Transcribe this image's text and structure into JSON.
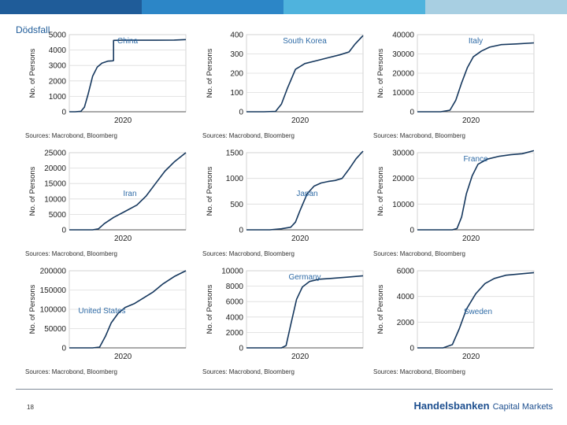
{
  "header": {
    "title": "Dödsfall",
    "bar_colors": [
      "#1f5c99",
      "#2c86c7",
      "#4fb3dd",
      "#a8cfe2"
    ]
  },
  "footer": {
    "page_number": "18",
    "brand_name": "Handelsbanken",
    "brand_suffix": "Capital Markets",
    "brand_color": "#1d4f8f"
  },
  "style": {
    "line_color": "#16385e",
    "grid_color": "#dcdcdc"
  },
  "chart_data": [
    {
      "type": "line",
      "title": "China",
      "ylabel": "No. of Persons",
      "xlabel": "2020",
      "source": "Sources: Macrobond, Bloomberg",
      "ylim": [
        0,
        5000
      ],
      "yticks": [
        "0",
        "1000",
        "2000",
        "3000",
        "4000",
        "5000"
      ],
      "grid": true,
      "legend_pos": "top-center",
      "series": [
        {
          "x": [
            0,
            0.05,
            0.1,
            0.13,
            0.16,
            0.2,
            0.24,
            0.28,
            0.33,
            0.37,
            0.38,
            0.38,
            0.45,
            0.6,
            0.75,
            0.9,
            1
          ],
          "y": [
            0,
            0,
            30,
            300,
            1100,
            2300,
            2900,
            3150,
            3280,
            3300,
            3320,
            4630,
            4640,
            4640,
            4640,
            4650,
            4680
          ]
        }
      ]
    },
    {
      "type": "line",
      "title": "South Korea",
      "ylabel": "No. of Persons",
      "xlabel": "2020",
      "source": "Sources: Macrobond, Bloomberg",
      "ylim": [
        0,
        400
      ],
      "yticks": [
        "0",
        "100",
        "200",
        "300",
        "400"
      ],
      "grid": true,
      "legend_pos": "top-center",
      "series": [
        {
          "x": [
            0,
            0.15,
            0.25,
            0.3,
            0.35,
            0.42,
            0.5,
            0.6,
            0.7,
            0.8,
            0.88,
            0.93,
            1
          ],
          "y": [
            0,
            0,
            2,
            40,
            120,
            220,
            250,
            265,
            280,
            295,
            310,
            350,
            395
          ]
        }
      ]
    },
    {
      "type": "line",
      "title": "Italy",
      "ylabel": "No. of Persons",
      "xlabel": "2020",
      "source": "Sources: Macrobond, Bloomberg",
      "ylim": [
        0,
        40000
      ],
      "yticks": [
        "0",
        "10000",
        "20000",
        "30000",
        "40000"
      ],
      "grid": true,
      "legend_pos": "top-center",
      "series": [
        {
          "x": [
            0,
            0.2,
            0.28,
            0.33,
            0.38,
            0.43,
            0.48,
            0.55,
            0.62,
            0.72,
            0.85,
            1
          ],
          "y": [
            0,
            0,
            800,
            6000,
            15000,
            23000,
            28500,
            31500,
            33500,
            34800,
            35200,
            35700
          ]
        }
      ]
    },
    {
      "type": "line",
      "title": "Iran",
      "ylabel": "No. of Persons",
      "xlabel": "2020",
      "source": "Sources: Macrobond, Bloomberg",
      "ylim": [
        0,
        25000
      ],
      "yticks": [
        "0",
        "5000",
        "10000",
        "15000",
        "20000",
        "25000"
      ],
      "grid": true,
      "legend_pos": "center",
      "series": [
        {
          "x": [
            0,
            0.2,
            0.25,
            0.3,
            0.38,
            0.48,
            0.58,
            0.66,
            0.74,
            0.82,
            0.9,
            1
          ],
          "y": [
            0,
            0,
            300,
            2000,
            4000,
            6000,
            8000,
            11000,
            15000,
            19000,
            22000,
            25000
          ]
        }
      ]
    },
    {
      "type": "line",
      "title": "Japan",
      "ylabel": "No. of Persons",
      "xlabel": "2020",
      "source": "Sources: Macrobond, Bloomberg",
      "ylim": [
        0,
        1500
      ],
      "yticks": [
        "0",
        "500",
        "1000",
        "1500"
      ],
      "grid": true,
      "legend_pos": "center",
      "series": [
        {
          "x": [
            0,
            0.2,
            0.3,
            0.38,
            0.42,
            0.46,
            0.52,
            0.58,
            0.64,
            0.7,
            0.76,
            0.82,
            0.88,
            0.94,
            1
          ],
          "y": [
            0,
            0,
            20,
            50,
            150,
            380,
            700,
            850,
            910,
            940,
            960,
            1000,
            1180,
            1380,
            1530
          ]
        }
      ]
    },
    {
      "type": "line",
      "title": "France",
      "ylabel": "No. of Persons",
      "xlabel": "2020",
      "source": "Sources: Macrobond, Bloomberg",
      "ylim": [
        0,
        30000
      ],
      "yticks": [
        "0",
        "10000",
        "20000",
        "30000"
      ],
      "grid": true,
      "legend_pos": "top-center",
      "series": [
        {
          "x": [
            0,
            0.3,
            0.34,
            0.38,
            0.42,
            0.47,
            0.52,
            0.6,
            0.7,
            0.8,
            0.9,
            1
          ],
          "y": [
            0,
            0,
            500,
            5000,
            14000,
            21000,
            25500,
            27500,
            28600,
            29200,
            29600,
            30800
          ]
        }
      ]
    },
    {
      "type": "line",
      "title": "United States",
      "ylabel": "No. of Persons",
      "xlabel": "2020",
      "source": "Sources: Macrobond, Bloomberg",
      "ylim": [
        0,
        200000
      ],
      "yticks": [
        "0",
        "50000",
        "100000",
        "150000",
        "200000"
      ],
      "grid": true,
      "legend_pos": "bottom-left",
      "series": [
        {
          "x": [
            0,
            0.2,
            0.26,
            0.31,
            0.36,
            0.42,
            0.48,
            0.56,
            0.64,
            0.72,
            0.8,
            0.9,
            1
          ],
          "y": [
            0,
            0,
            2000,
            30000,
            65000,
            90000,
            105000,
            115000,
            130000,
            145000,
            165000,
            185000,
            200000
          ]
        }
      ]
    },
    {
      "type": "line",
      "title": "Germany",
      "ylabel": "No. of Persons",
      "xlabel": "2020",
      "source": "Sources: Macrobond, Bloomberg",
      "ylim": [
        0,
        10000
      ],
      "yticks": [
        "0",
        "2000",
        "4000",
        "6000",
        "8000",
        "10000"
      ],
      "grid": true,
      "legend_pos": "top-center",
      "series": [
        {
          "x": [
            0,
            0.3,
            0.34,
            0.38,
            0.43,
            0.48,
            0.54,
            0.62,
            0.72,
            0.85,
            1
          ],
          "y": [
            0,
            0,
            300,
            3000,
            6300,
            7900,
            8600,
            8900,
            9000,
            9150,
            9350
          ]
        }
      ]
    },
    {
      "type": "line",
      "title": "Sweden",
      "ylabel": "No. of Persons",
      "xlabel": "2020",
      "source": "Sources: Macrobond, Bloomberg",
      "ylim": [
        0,
        6000
      ],
      "yticks": [
        "0",
        "2000",
        "4000",
        "6000"
      ],
      "grid": true,
      "legend_pos": "center",
      "series": [
        {
          "x": [
            0,
            0.22,
            0.3,
            0.36,
            0.42,
            0.5,
            0.58,
            0.66,
            0.76,
            0.88,
            1
          ],
          "y": [
            0,
            0,
            250,
            1500,
            3000,
            4200,
            5000,
            5400,
            5650,
            5750,
            5850
          ]
        }
      ]
    }
  ]
}
